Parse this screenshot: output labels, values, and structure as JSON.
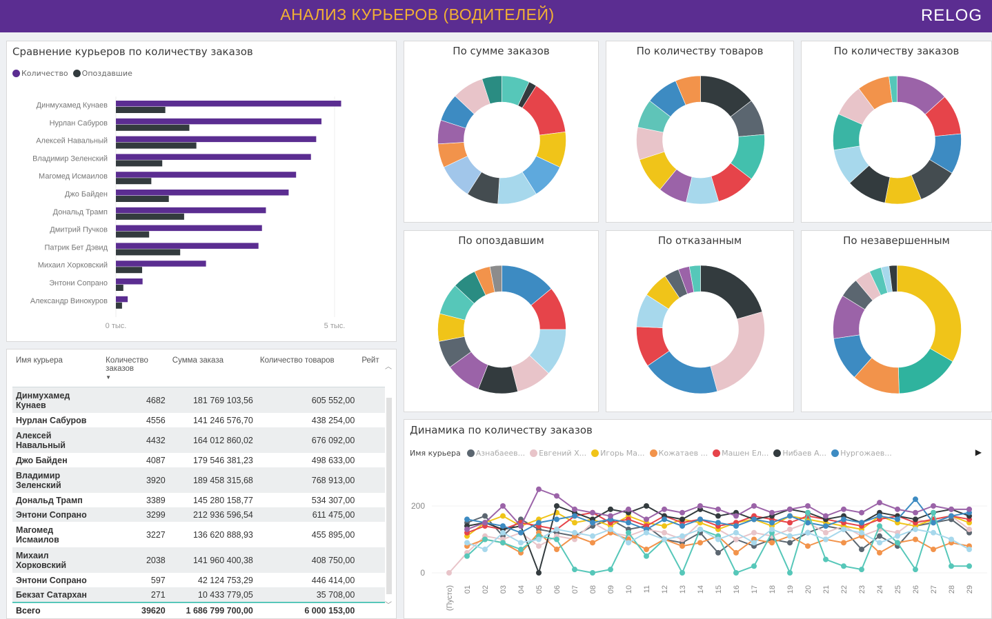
{
  "header": {
    "title": "АНАЛИЗ КУРЬЕРОВ (ВОДИТЕЛЕЙ)",
    "logo": "RELOG"
  },
  "colors": {
    "purple": "#5b2d91",
    "dark": "#333b3e",
    "gold": "#f2b134"
  },
  "bar_panel": {
    "title": "Сравнение курьеров по количеству заказов",
    "legend": [
      {
        "label": "Количество",
        "color": "#5b2d91"
      },
      {
        "label": "Опоздавшие",
        "color": "#333b3e"
      }
    ]
  },
  "chart_data": [
    {
      "type": "bar",
      "orientation": "horizontal",
      "title": "Сравнение курьеров по количеству заказов",
      "categories": [
        "Динмухамед Кунаев",
        "Нурлан Сабуров",
        "Алексей Навальный",
        "Владимир Зеленский",
        "Магомед Исмаилов",
        "Джо Байден",
        "Дональд Трамп",
        "Дмитрий Пучков",
        "Патрик Бет Дэвид",
        "Михаил Хорковский",
        "Энтони Сопрано",
        "Александр Винокуров"
      ],
      "series": [
        {
          "name": "Количество",
          "values": [
            5150,
            4700,
            4580,
            4460,
            4120,
            3950,
            3430,
            3340,
            3260,
            2060,
            610,
            270
          ]
        },
        {
          "name": "Опоздавшие",
          "values": [
            1130,
            1680,
            1840,
            1060,
            810,
            1210,
            1560,
            760,
            1470,
            600,
            170,
            140
          ]
        }
      ],
      "xtick_labels": [
        "0 тыс.",
        "5 тыс."
      ],
      "xlim": [
        0,
        5500
      ]
    },
    {
      "type": "pie",
      "title": "По сумме заказов",
      "values": [
        7,
        2,
        14,
        9,
        9,
        10,
        8,
        9,
        6,
        6,
        7,
        8,
        5
      ],
      "colors": [
        "#56c7b9",
        "#333b3e",
        "#e6444a",
        "#f0c419",
        "#5ea9dd",
        "#a7d8ec",
        "#444c50",
        "#a1c6ea",
        "#f2934b",
        "#9b63a8",
        "#3d8bc2",
        "#e8c4c9",
        "#2a8c82"
      ]
    },
    {
      "type": "pie",
      "title": "По количеству товаров",
      "values": [
        16,
        10,
        13,
        11,
        9,
        8,
        10,
        9,
        8,
        9,
        7
      ],
      "colors": [
        "#333b3e",
        "#5b6670",
        "#43c0ad",
        "#e6444a",
        "#a7d8ec",
        "#9b63a8",
        "#f0c419",
        "#e8c4c9",
        "#5fc4b8",
        "#3d8bc2",
        "#f2934b"
      ]
    },
    {
      "type": "pie",
      "title": "По количеству заказов",
      "values": [
        13,
        10,
        10,
        10,
        9,
        10,
        9,
        9,
        8,
        8,
        2
      ],
      "colors": [
        "#9b63a8",
        "#e6444a",
        "#3d8bc2",
        "#444c50",
        "#f0c419",
        "#333b3e",
        "#a7d8ec",
        "#3ab5a4",
        "#e8c4c9",
        "#f2934b",
        "#56c7b9"
      ]
    },
    {
      "type": "pie",
      "title": "По опоздавшим",
      "values": [
        14,
        11,
        12,
        9,
        10,
        9,
        7,
        7,
        8,
        6,
        4,
        3
      ],
      "colors": [
        "#3d8bc2",
        "#e6444a",
        "#a7d8ec",
        "#e8c4c9",
        "#333b3e",
        "#9b63a8",
        "#5b6670",
        "#f0c419",
        "#56c7b9",
        "#2a8c82",
        "#f2934b",
        "#8c8c8c"
      ]
    },
    {
      "type": "pie",
      "title": "По отказанным",
      "values": [
        22,
        27,
        21,
        11,
        9,
        7,
        4,
        3,
        3
      ],
      "colors": [
        "#333b3e",
        "#e8c4c9",
        "#3d8bc2",
        "#e6444a",
        "#a7d8ec",
        "#f0c419",
        "#5b6670",
        "#9b63a8",
        "#56c7b9"
      ]
    },
    {
      "type": "pie",
      "title": "По незавершенным",
      "values": [
        33,
        16,
        12,
        11,
        11,
        5,
        4,
        3,
        2,
        2
      ],
      "colors": [
        "#f0c419",
        "#2fb39e",
        "#f2934b",
        "#3d8bc2",
        "#9b63a8",
        "#5b6670",
        "#e8c4c9",
        "#56c7b9",
        "#a7d8ec",
        "#333b3e"
      ]
    },
    {
      "type": "line",
      "title": "Динамика по количеству заказов",
      "legend_title": "Имя курьера",
      "x": [
        "(Пусто)",
        "01",
        "02",
        "03",
        "04",
        "05",
        "06",
        "07",
        "08",
        "09",
        "10",
        "11",
        "12",
        "13",
        "14",
        "15",
        "16",
        "17",
        "18",
        "19",
        "20",
        "21",
        "22",
        "23",
        "24",
        "25",
        "26",
        "27",
        "28",
        "29"
      ],
      "ytick_labels": [
        "0",
        "200"
      ],
      "ylim": [
        -20,
        250
      ],
      "series": [
        {
          "name": "Азнабаеев...",
          "color": "#5b6670",
          "values": [
            null,
            150,
            170,
            110,
            160,
            130,
            120,
            110,
            140,
            160,
            130,
            140,
            100,
            90,
            120,
            60,
            100,
            80,
            100,
            90,
            120,
            140,
            130,
            70,
            110,
            80,
            140,
            150,
            160,
            120
          ]
        },
        {
          "name": "Евгений Х...",
          "color": "#e8c4c9",
          "values": [
            0,
            60,
            110,
            100,
            120,
            80,
            110,
            100,
            150,
            120,
            110,
            130,
            120,
            100,
            150,
            130,
            100,
            120,
            110,
            130,
            150,
            120,
            140,
            110,
            130,
            120,
            160,
            150,
            170,
            130
          ]
        },
        {
          "name": "Игорь Ма...",
          "color": "#f0c419",
          "values": [
            null,
            110,
            150,
            170,
            140,
            160,
            180,
            150,
            160,
            140,
            170,
            150,
            140,
            160,
            150,
            130,
            150,
            160,
            140,
            170,
            160,
            150,
            140,
            130,
            170,
            150,
            140,
            160,
            170,
            150
          ]
        },
        {
          "name": "Кожатаев ...",
          "color": "#f2934b",
          "values": [
            null,
            80,
            100,
            90,
            60,
            120,
            70,
            110,
            90,
            120,
            100,
            70,
            100,
            80,
            90,
            110,
            60,
            100,
            90,
            110,
            80,
            100,
            90,
            110,
            60,
            90,
            100,
            70,
            90,
            80
          ]
        },
        {
          "name": "Машен Ел...",
          "color": "#e6444a",
          "values": [
            null,
            120,
            140,
            130,
            150,
            140,
            130,
            170,
            180,
            150,
            160,
            140,
            170,
            150,
            160,
            140,
            150,
            170,
            160,
            150,
            170,
            160,
            150,
            140,
            160,
            170,
            150,
            160,
            170,
            160
          ]
        },
        {
          "name": "Нибаев А...",
          "color": "#333b3e",
          "values": [
            null,
            140,
            150,
            130,
            140,
            0,
            200,
            180,
            160,
            190,
            180,
            200,
            170,
            160,
            190,
            170,
            180,
            160,
            170,
            190,
            180,
            160,
            170,
            150,
            180,
            170,
            160,
            180,
            190,
            170
          ]
        },
        {
          "name": "Нургожаев...",
          "color": "#3d8bc2",
          "values": [
            null,
            160,
            150,
            140,
            120,
            150,
            160,
            170,
            150,
            160,
            150,
            130,
            160,
            140,
            160,
            150,
            140,
            160,
            150,
            170,
            150,
            140,
            160,
            150,
            170,
            160,
            220,
            150,
            170,
            180
          ]
        },
        {
          "name": "",
          "color": "#9b63a8",
          "values": [
            null,
            130,
            150,
            200,
            140,
            250,
            230,
            190,
            180,
            170,
            190,
            160,
            190,
            180,
            200,
            190,
            170,
            200,
            180,
            190,
            200,
            170,
            190,
            180,
            210,
            190,
            180,
            200,
            190,
            190
          ]
        },
        {
          "name": "",
          "color": "#56c7b9",
          "values": [
            null,
            50,
            100,
            90,
            70,
            110,
            100,
            10,
            0,
            10,
            120,
            50,
            100,
            0,
            130,
            110,
            0,
            20,
            120,
            0,
            180,
            40,
            20,
            10,
            140,
            90,
            10,
            180,
            20,
            20
          ]
        },
        {
          "name": "",
          "color": "#a7d8ec",
          "values": [
            null,
            90,
            70,
            120,
            90,
            100,
            130,
            120,
            110,
            130,
            90,
            120,
            100,
            110,
            130,
            100,
            120,
            90,
            130,
            110,
            120,
            100,
            130,
            120,
            90,
            110,
            130,
            120,
            100,
            70
          ]
        }
      ]
    }
  ],
  "table": {
    "columns": [
      "Имя курьера",
      "Количество заказов",
      "Сумма заказа",
      "Количество товаров",
      "Рейт"
    ],
    "rows": [
      {
        "name": "Динмухамед Кунаев",
        "orders": "4682",
        "sum": "181 769 103,56",
        "goods": "605 552,00"
      },
      {
        "name": "Нурлан Сабуров",
        "orders": "4556",
        "sum": "141 246 576,70",
        "goods": "438 254,00"
      },
      {
        "name": "Алексей Навальный",
        "orders": "4432",
        "sum": "164 012 860,02",
        "goods": "676 092,00"
      },
      {
        "name": "Джо Байден",
        "orders": "4087",
        "sum": "179 546 381,23",
        "goods": "498 633,00"
      },
      {
        "name": "Владимир Зеленский",
        "orders": "3920",
        "sum": "189 458 315,68",
        "goods": "768 913,00"
      },
      {
        "name": "Дональд Трамп",
        "orders": "3389",
        "sum": "145 280 158,77",
        "goods": "534 307,00"
      },
      {
        "name": "Энтони Сопрано",
        "orders": "3299",
        "sum": "212 936 596,54",
        "goods": "611 475,00"
      },
      {
        "name": "Магомед Исмаилов",
        "orders": "3227",
        "sum": "136 620 888,93",
        "goods": "455 895,00"
      },
      {
        "name": "Михаил Хорковский",
        "orders": "2038",
        "sum": "141 960 400,38",
        "goods": "408 750,00"
      },
      {
        "name": "Энтони Сопрано",
        "orders": "597",
        "sum": "42 124 753,29",
        "goods": "446 414,00"
      },
      {
        "name": "Бекзат Сатархан",
        "orders": "271",
        "sum": "10 433 779,05",
        "goods": "35 708,00"
      }
    ],
    "total": {
      "label": "Всего",
      "orders": "39620",
      "sum": "1 686 799 700,00",
      "goods": "6 000 153,00"
    }
  }
}
